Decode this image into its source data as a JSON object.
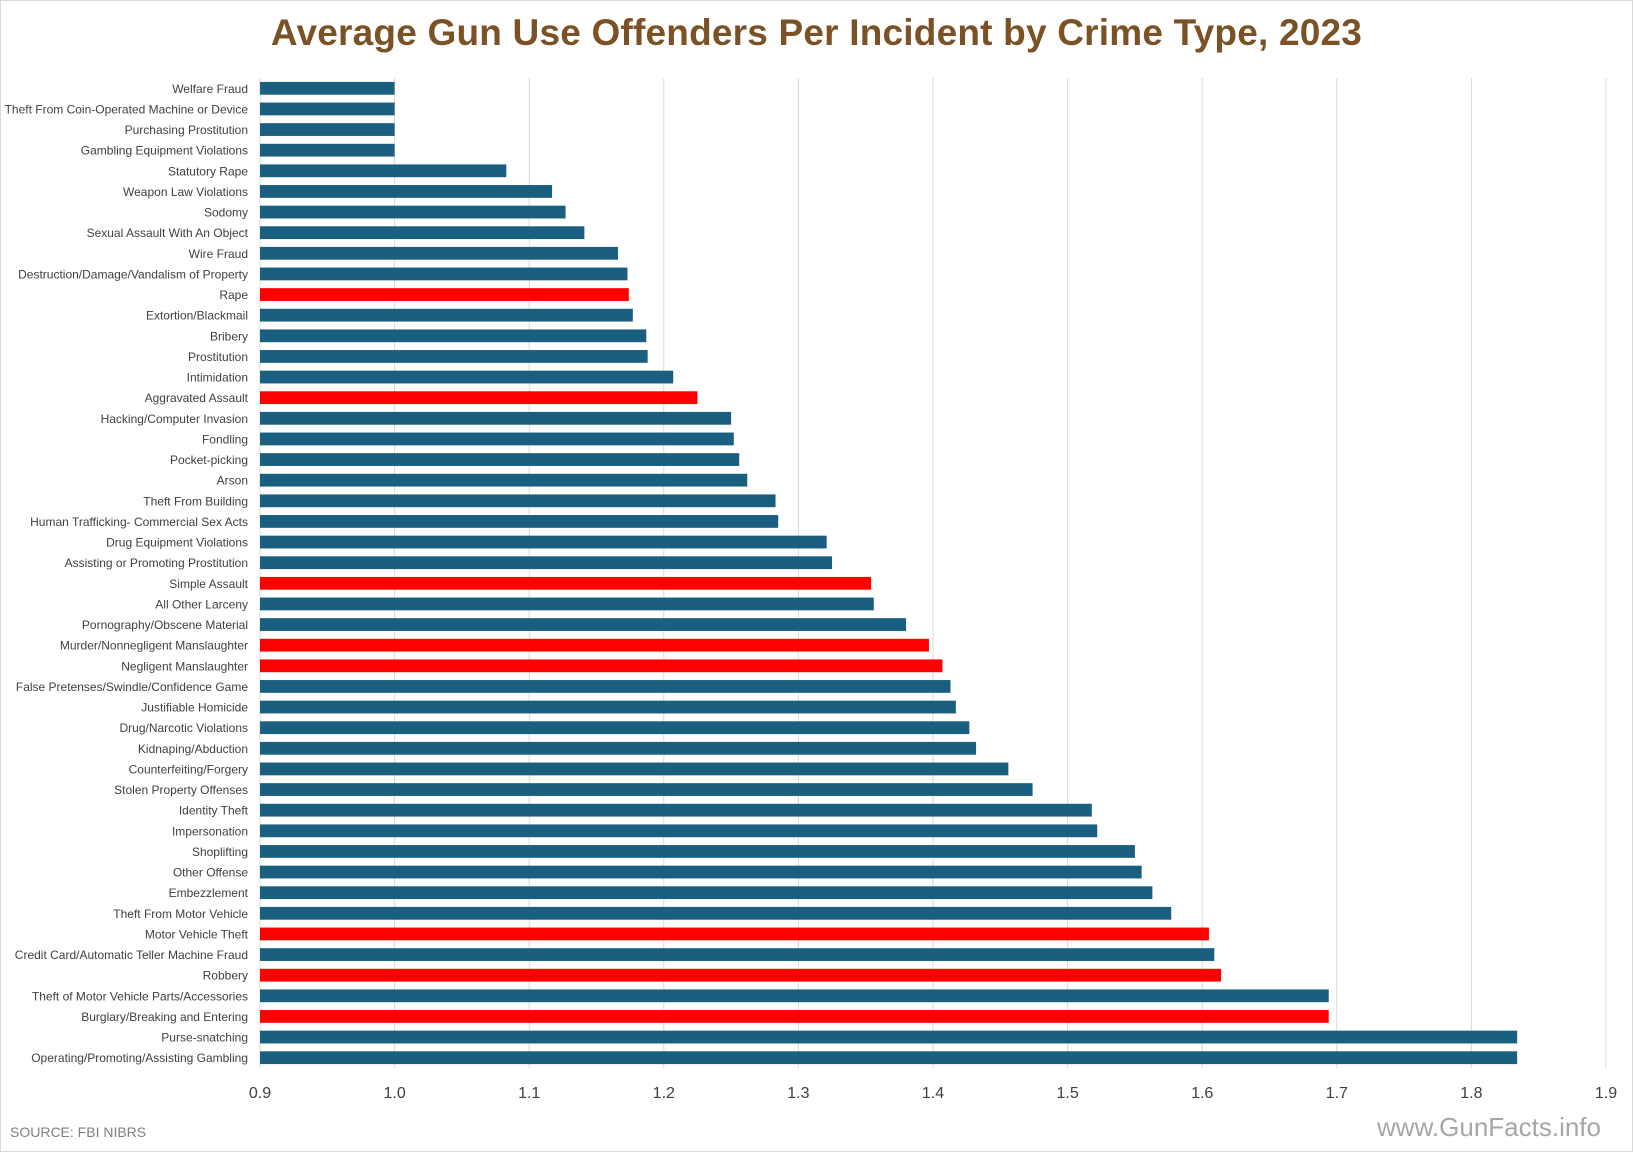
{
  "chart_data": {
    "type": "bar",
    "orientation": "horizontal",
    "title": "Average Gun Use Offenders Per Incident by Crime Type, 2023",
    "xlabel": "",
    "ylabel": "",
    "xlim": [
      0.9,
      1.9
    ],
    "xticks": [
      "0.9",
      "1.0",
      "1.1",
      "1.2",
      "1.3",
      "1.4",
      "1.5",
      "1.6",
      "1.7",
      "1.8",
      "1.9"
    ],
    "grid": "vertical",
    "legend": "none",
    "categories": [
      "Welfare Fraud",
      "Theft From Coin-Operated Machine or Device",
      "Purchasing Prostitution",
      "Gambling Equipment Violations",
      "Statutory Rape",
      "Weapon Law Violations",
      "Sodomy",
      "Sexual Assault With An Object",
      "Wire Fraud",
      "Destruction/Damage/Vandalism of Property",
      "Rape",
      "Extortion/Blackmail",
      "Bribery",
      "Prostitution",
      "Intimidation",
      "Aggravated Assault",
      "Hacking/Computer Invasion",
      "Fondling",
      "Pocket-picking",
      "Arson",
      "Theft From Building",
      "Human Trafficking- Commercial Sex Acts",
      "Drug Equipment Violations",
      "Assisting or Promoting Prostitution",
      "Simple Assault",
      "All Other Larceny",
      "Pornography/Obscene Material",
      "Murder/Nonnegligent Manslaughter",
      "Negligent Manslaughter",
      "False Pretenses/Swindle/Confidence Game",
      "Justifiable Homicide",
      "Drug/Narcotic Violations",
      "Kidnaping/Abduction",
      "Counterfeiting/Forgery",
      "Stolen Property Offenses",
      "Identity Theft",
      "Impersonation",
      "Shoplifting",
      "Other Offense",
      "Embezzlement",
      "Theft From Motor Vehicle",
      "Motor Vehicle Theft",
      "Credit Card/Automatic Teller Machine Fraud",
      "Robbery",
      "Theft of Motor Vehicle Parts/Accessories",
      "Burglary/Breaking and Entering",
      "Purse-snatching",
      "Operating/Promoting/Assisting Gambling"
    ],
    "values": [
      1.0,
      1.0,
      1.0,
      1.0,
      1.083,
      1.117,
      1.127,
      1.141,
      1.166,
      1.173,
      1.174,
      1.177,
      1.187,
      1.188,
      1.207,
      1.225,
      1.25,
      1.252,
      1.256,
      1.262,
      1.283,
      1.285,
      1.321,
      1.325,
      1.354,
      1.356,
      1.38,
      1.397,
      1.407,
      1.413,
      1.417,
      1.427,
      1.432,
      1.456,
      1.474,
      1.518,
      1.522,
      1.55,
      1.555,
      1.563,
      1.577,
      1.605,
      1.609,
      1.614,
      1.694,
      1.694,
      1.834,
      1.834
    ],
    "highlighted": [
      "Rape",
      "Aggravated Assault",
      "Simple Assault",
      "Murder/Nonnegligent Manslaughter",
      "Negligent Manslaughter",
      "Motor Vehicle Theft",
      "Robbery",
      "Burglary/Breaking and Entering"
    ],
    "colors": {
      "default": "#1a5f7f",
      "highlight": "#ff0000",
      "grid": "#d9d9d9",
      "title": "#7a5226"
    }
  },
  "footer": {
    "source": "SOURCE: FBI NIBRS",
    "watermark": "www.GunFacts.info"
  }
}
